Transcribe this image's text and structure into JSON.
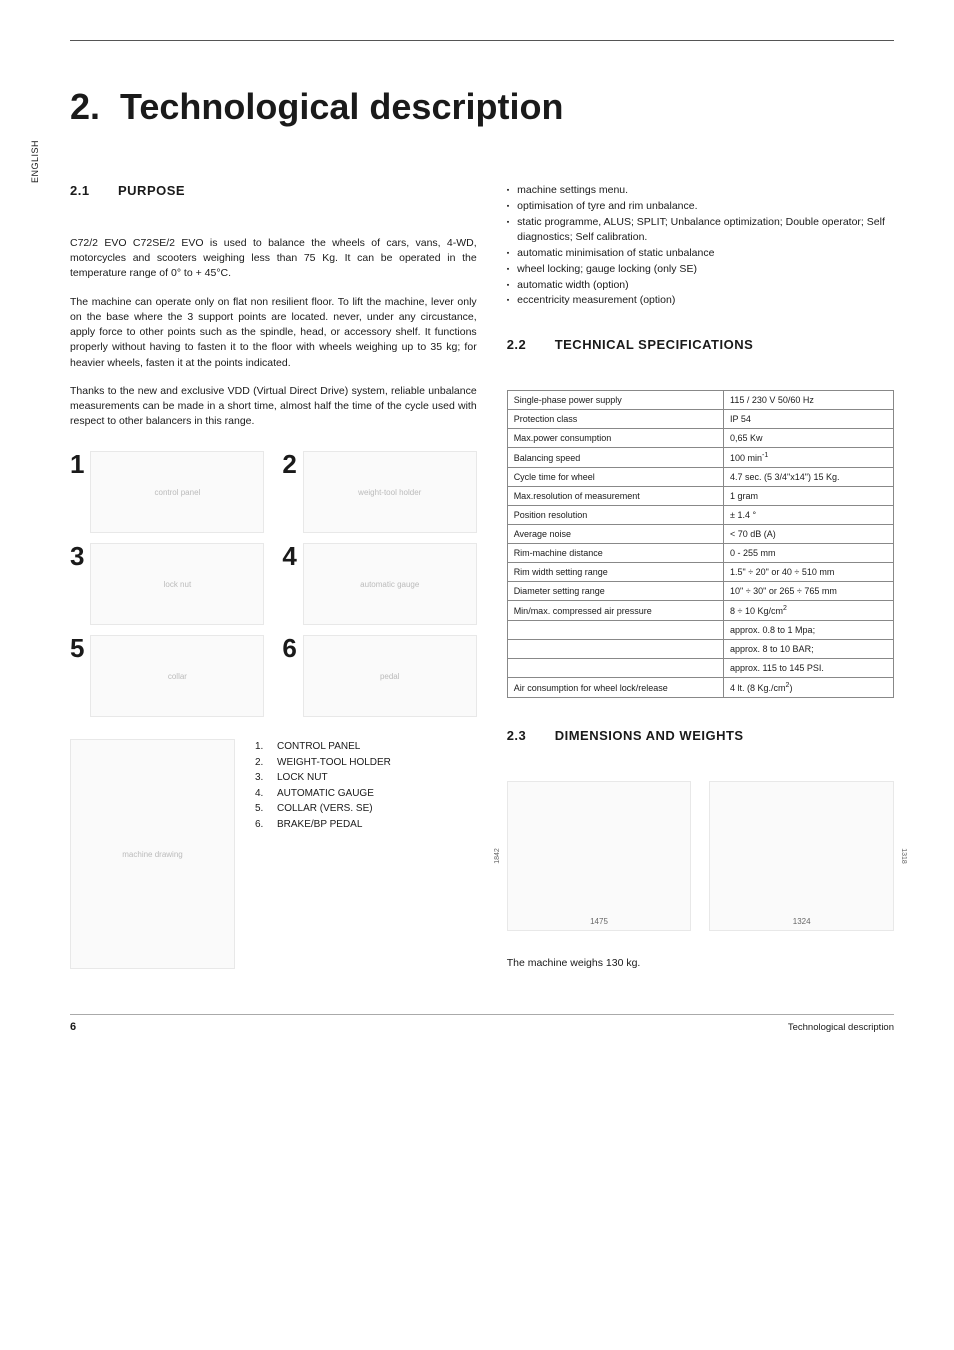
{
  "sideTab": "ENGLISH",
  "chapter": {
    "number": "2.",
    "title": "Technological description"
  },
  "left": {
    "s21": {
      "num": "2.1",
      "title": "PURPOSE"
    },
    "p1": "C72/2 EVO C72SE/2 EVO is used to balance the wheels of cars, vans, 4-WD, motorcycles and scooters weighing less than 75 Kg. It can be operated in the temperature range of 0° to + 45°C.",
    "p2": "The machine can operate only on flat non resilient floor. To lift the machine, lever only on the base where the 3 support points are located. never, under any circustance, apply force to other points such as the spindle, head, or accessory shelf. It functions properly without having to fasten it to the floor with wheels weighing up to 35 kg; for heavier wheels, fasten it at the points indicated.",
    "p3": "Thanks to the new and exclusive VDD (Virtual Direct Drive) system, reliable unbalance measurements can be made in a short time, almost half the time of the cycle used with respect to other balancers in this range.",
    "figNums": [
      "1",
      "2",
      "3",
      "4",
      "5",
      "6"
    ],
    "legend": [
      {
        "n": "1.",
        "t": "CONTROL PANEL"
      },
      {
        "n": "2.",
        "t": "WEIGHT-TOOL HOLDER"
      },
      {
        "n": "3.",
        "t": "LOCK NUT"
      },
      {
        "n": "4.",
        "t": "AUTOMATIC GAUGE"
      },
      {
        "n": "5.",
        "t": "COLLAR (VERS. SE)"
      },
      {
        "n": "6.",
        "t": "BRAKE/BP PEDAL"
      }
    ]
  },
  "right": {
    "bullets": [
      "machine settings menu.",
      "optimisation of tyre and rim unbalance.",
      "static programme, ALUS; SPLIT; Unbalance optimization; Double operator; Self diagnostics; Self calibration.",
      "automatic minimisation of static unbalance",
      "wheel locking; gauge locking (only SE)",
      "automatic width (option)",
      "eccentricity measurement (option)"
    ],
    "s22": {
      "num": "2.2",
      "title": "TECHNICAL SPECIFICATIONS"
    },
    "specs": [
      {
        "k": "Single-phase power supply",
        "v": "115 / 230 V 50/60 Hz"
      },
      {
        "k": "Protection class",
        "v": "IP 54"
      },
      {
        "k": "Max.power consumption",
        "v": "0,65 Kw"
      },
      {
        "k": "Balancing speed",
        "v": "100 min",
        "sup": "-1"
      },
      {
        "k": "Cycle time for wheel",
        "v": "4.7 sec. (5 3/4\"x14\") 15 Kg."
      },
      {
        "k": "Max.resolution of measurement",
        "v": "1 gram"
      },
      {
        "k": "Position resolution",
        "v": "± 1.4 °"
      },
      {
        "k": "Average noise",
        "v": "< 70 dB (A)"
      },
      {
        "k": "Rim-machine distance",
        "v": "0 - 255 mm"
      },
      {
        "k": "Rim width setting range",
        "v": "1.5\" ÷ 20\" or 40 ÷ 510 mm"
      },
      {
        "k": "Diameter setting range",
        "v": "10\" ÷ 30\" or 265 ÷ 765 mm"
      },
      {
        "k": "Min/max. compressed air pressure",
        "v": "8 ÷ 10 Kg/cm",
        "sup": "2"
      },
      {
        "k": "",
        "v": "approx. 0.8 to 1 Mpa;"
      },
      {
        "k": "",
        "v": "approx. 8 to 10 BAR;"
      },
      {
        "k": "",
        "v": "approx. 115 to 145 PSI."
      },
      {
        "k": "Air consumption for wheel lock/release",
        "v": "4 lt. (8 Kg./cm",
        "sup": "2",
        "tail": ")"
      }
    ],
    "s23": {
      "num": "2.3",
      "title": "DIMENSIONS AND WEIGHTS"
    },
    "dims": {
      "front": {
        "w": "1475",
        "h": "1842"
      },
      "side": {
        "w": "1324",
        "h": "1318"
      }
    },
    "weight": "The machine weighs 130 kg."
  },
  "footer": {
    "page": "6",
    "label": "Technological description"
  }
}
